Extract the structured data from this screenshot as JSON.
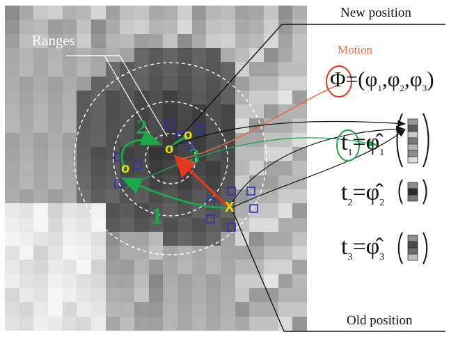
{
  "labels": {
    "new_position": "New position",
    "old_position": "Old position",
    "ranges": "Ranges",
    "motion": "Motion"
  },
  "equations": {
    "phi_lhs": "Φ",
    "phi_rhs_open": "=(",
    "phi1": "φ",
    "phi1_sub": "1",
    "phi2": "φ",
    "phi2_sub": "2",
    "phi3": "φ",
    "phi3_sub": "3",
    "phi_rhs_close": ")",
    "t1": "t",
    "t1_sub": "1",
    "t2": "t",
    "t2_sub": "2",
    "t3": "t",
    "t3_sub": "3",
    "equals": "=",
    "phihat": "φ̂",
    "phihat1_sub": "1",
    "phihat2_sub": "2",
    "phihat3_sub": "3"
  },
  "path_numbers": {
    "n1": "1",
    "n2": "2",
    "n3": "3"
  },
  "markers": {
    "old_x": "X",
    "o1": "o",
    "o2": "o",
    "o3": "o"
  },
  "colors": {
    "green": "#1fa64a",
    "red": "#e0391f",
    "orange_label": "#f06a3a",
    "yellow": "#f2e000",
    "blue_box": "#2f2fb8",
    "dashed": "#ffffff",
    "line": "#111111"
  }
}
